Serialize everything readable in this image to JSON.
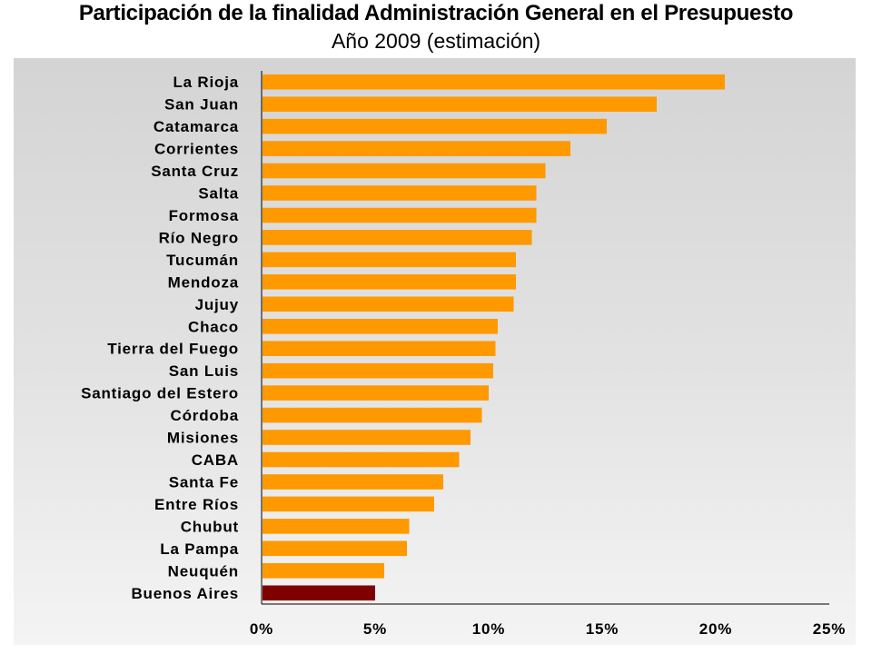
{
  "chart_data": {
    "type": "bar",
    "orientation": "horizontal",
    "title": "Participación de la finalidad Administración General en el Presupuesto",
    "subtitle": "Año 2009 (estimación)",
    "categories": [
      "La Rioja",
      "San Juan",
      "Catamarca",
      "Corrientes",
      "Santa Cruz",
      "Salta",
      "Formosa",
      "Río Negro",
      "Tucumán",
      "Mendoza",
      "Jujuy",
      "Chaco",
      "Tierra del Fuego",
      "San Luis",
      "Santiago del Estero",
      "Córdoba",
      "Misiones",
      "CABA",
      "Santa Fe",
      "Entre Ríos",
      "Chubut",
      "La Pampa",
      "Neuquén",
      "Buenos Aires"
    ],
    "values": [
      20.4,
      17.4,
      15.2,
      13.6,
      12.5,
      12.1,
      12.1,
      11.9,
      11.2,
      11.2,
      11.1,
      10.4,
      10.3,
      10.2,
      10.0,
      9.7,
      9.2,
      8.7,
      8.0,
      7.6,
      6.5,
      6.4,
      5.4,
      5.0
    ],
    "highlight": "Buenos Aires",
    "xlim": [
      0,
      25
    ],
    "xticks": [
      0,
      5,
      10,
      15,
      20,
      25
    ],
    "xtick_labels": [
      "0%",
      "5%",
      "10%",
      "15%",
      "20%",
      "25%"
    ],
    "xlabel": "",
    "ylabel": "",
    "colors": {
      "bar": "#ff9900",
      "highlight_bar": "#800000",
      "axis": "#000000"
    },
    "legend": "none",
    "grid": false
  }
}
